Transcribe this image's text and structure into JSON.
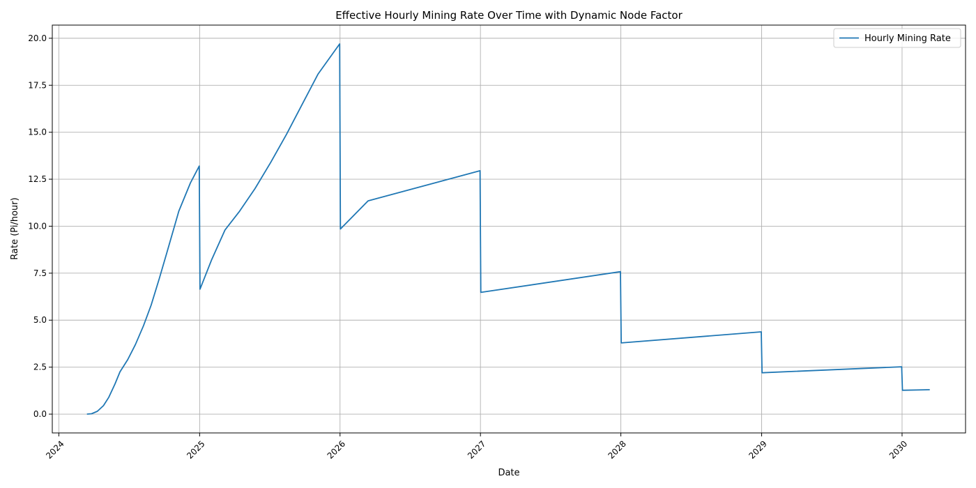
{
  "chart_data": {
    "type": "line",
    "title": "Effective Hourly Mining Rate Over Time with Dynamic Node Factor",
    "xlabel": "Date",
    "ylabel": "Rate (Pi/hour)",
    "xlim": [
      "2023-12-15",
      "2030-06-15"
    ],
    "ylim": [
      -1.0,
      20.7
    ],
    "grid": true,
    "legend_position": "top-right",
    "x_ticks": [
      "2024",
      "2025",
      "2026",
      "2027",
      "2028",
      "2029",
      "2030"
    ],
    "y_ticks": [
      "0.0",
      "2.5",
      "5.0",
      "7.5",
      "10.0",
      "12.5",
      "15.0",
      "17.5",
      "20.0"
    ],
    "colors": {
      "series": "#1f77b4",
      "grid": "#b0b0b0"
    },
    "series": [
      {
        "name": "Hourly Mining Rate",
        "points": [
          [
            "2024-03-14",
            0.0
          ],
          [
            "2024-03-26",
            0.02
          ],
          [
            "2024-04-10",
            0.15
          ],
          [
            "2024-04-26",
            0.45
          ],
          [
            "2024-05-10",
            0.9
          ],
          [
            "2024-05-26",
            1.6
          ],
          [
            "2024-06-08",
            2.25
          ],
          [
            "2024-06-28",
            2.9
          ],
          [
            "2024-07-18",
            3.7
          ],
          [
            "2024-08-08",
            4.7
          ],
          [
            "2024-08-28",
            5.8
          ],
          [
            "2024-09-18",
            7.2
          ],
          [
            "2024-10-08",
            8.6
          ],
          [
            "2024-11-08",
            10.8
          ],
          [
            "2024-12-08",
            12.3
          ],
          [
            "2024-12-31",
            13.2
          ],
          [
            "2025-01-02",
            6.65
          ],
          [
            "2025-02-01",
            8.2
          ],
          [
            "2025-03-08",
            9.8
          ],
          [
            "2025-04-15",
            10.8
          ],
          [
            "2025-05-25",
            12.0
          ],
          [
            "2025-07-05",
            13.4
          ],
          [
            "2025-08-15",
            14.9
          ],
          [
            "2025-09-25",
            16.5
          ],
          [
            "2025-11-05",
            18.1
          ],
          [
            "2025-12-31",
            19.7
          ],
          [
            "2026-01-02",
            9.85
          ],
          [
            "2026-03-15",
            11.35
          ],
          [
            "2026-12-31",
            12.95
          ],
          [
            "2027-01-02",
            6.48
          ],
          [
            "2027-12-31",
            7.58
          ],
          [
            "2028-01-02",
            3.79
          ],
          [
            "2028-12-31",
            4.38
          ],
          [
            "2029-01-02",
            2.2
          ],
          [
            "2029-12-31",
            2.52
          ],
          [
            "2030-01-02",
            1.27
          ],
          [
            "2030-03-14",
            1.3
          ]
        ]
      }
    ]
  }
}
